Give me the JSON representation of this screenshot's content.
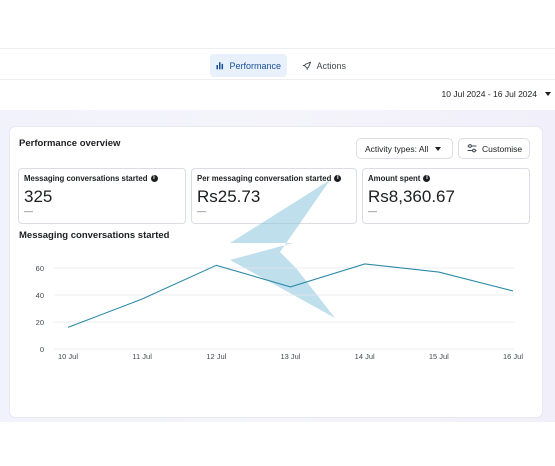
{
  "tabs": [
    {
      "label": "Performance",
      "icon": "bar-chart-icon",
      "active": true
    },
    {
      "label": "Actions",
      "icon": "rocket-icon",
      "active": false
    }
  ],
  "date_range": "10 Jul 2024 - 16 Jul 2024",
  "overview": {
    "title": "Performance overview",
    "activity_types": "Activity types: All",
    "customise": "Customise"
  },
  "metrics": [
    {
      "label": "Messaging conversations started",
      "value": "325",
      "delta": "—"
    },
    {
      "label": "Per messaging conversation started",
      "value": "Rs25.73",
      "delta": "—"
    },
    {
      "label": "Amount spent",
      "value": "Rs8,360.67",
      "delta": "—"
    }
  ],
  "colors": {
    "accent": "#1a4f9c",
    "line": "#2d8ba8",
    "watermark": "#8cc4de"
  },
  "chart_data": {
    "type": "line",
    "title": "Messaging conversations started",
    "xlabel": "",
    "ylabel": "",
    "categories": [
      "10 Jul",
      "11 Jul",
      "12 Jul",
      "13 Jul",
      "14 Jul",
      "15 Jul",
      "16 Jul"
    ],
    "series": [
      {
        "values": [
          16,
          37,
          62,
          46,
          63,
          57,
          43
        ]
      }
    ],
    "yticks": [
      0,
      20,
      40,
      60
    ],
    "ylim": [
      0,
      70
    ],
    "grid": true,
    "legend": "none"
  }
}
